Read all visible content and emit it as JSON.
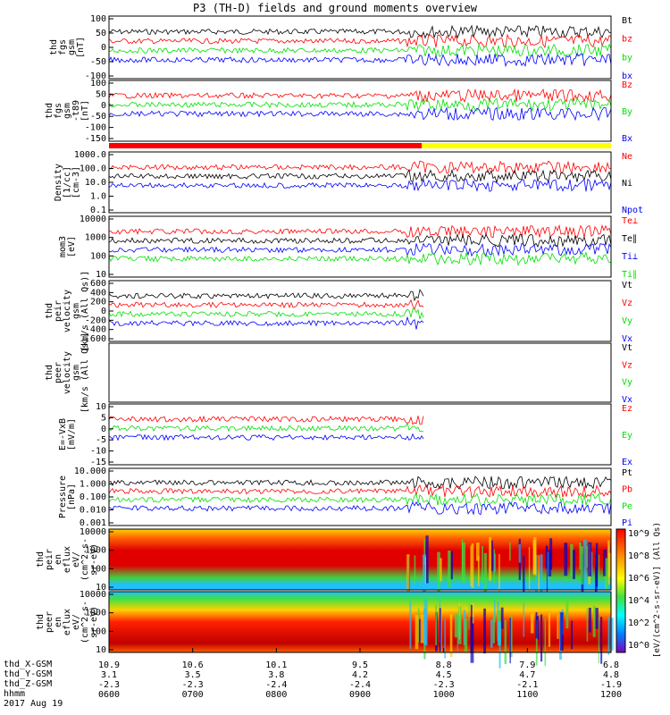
{
  "title": "P3 (TH-D) fields and ground moments overview",
  "footer": {
    "rows": [
      "thd_X-GSM",
      "thd_Y-GSM",
      "thd_Z-GSM",
      "hhmm"
    ],
    "date": "2017 Aug 19",
    "ticks": [
      {
        "x": "10.9",
        "y": "3.1",
        "z": "-2.3",
        "t": "0600"
      },
      {
        "x": "10.6",
        "y": "3.5",
        "z": "-2.3",
        "t": "0700"
      },
      {
        "x": "10.1",
        "y": "3.8",
        "z": "-2.4",
        "t": "0800"
      },
      {
        "x": "9.5",
        "y": "4.2",
        "z": "-2.4",
        "t": "0900"
      },
      {
        "x": "8.8",
        "y": "4.5",
        "z": "-2.3",
        "t": "1000"
      },
      {
        "x": "7.9",
        "y": "4.7",
        "z": "-2.1",
        "t": "1100"
      },
      {
        "x": "6.8",
        "y": "4.8",
        "z": "-1.9",
        "t": "1200"
      }
    ]
  },
  "colors": {
    "black": "#000000",
    "red": "#ff0000",
    "green": "#00e000",
    "blue": "#0000ff"
  },
  "chart_data": {
    "type": "line",
    "xlabel": "hhmm",
    "xlim": [
      "0600",
      "1200"
    ],
    "panels": [
      {
        "ylabel": [
          "thd",
          "fgs",
          "gsm",
          "[nT]"
        ],
        "yticks": [
          "100",
          "50",
          "0",
          "-50",
          "-100"
        ],
        "ylim": [
          -100,
          100
        ],
        "legend": [
          {
            "name": "Bt",
            "color": "#000000"
          },
          {
            "name": "bz",
            "color": "#ff0000"
          },
          {
            "name": "by",
            "color": "#00e000"
          },
          {
            "name": "bx",
            "color": "#0000ff"
          }
        ]
      },
      {
        "ylabel": [
          "thd",
          "fgs",
          "gsm",
          "-t89",
          "[nT]"
        ],
        "yticks": [
          "100",
          "50",
          "0",
          "-50",
          "-100",
          "-150"
        ],
        "ylim": [
          -180,
          100
        ],
        "legend": [
          {
            "name": "Bz",
            "color": "#ff0000"
          },
          {
            "name": "By",
            "color": "#00e000"
          },
          {
            "name": "Bx",
            "color": "#0000ff"
          }
        ]
      },
      {
        "ylabel": [
          "Density",
          "[1/cc]",
          "[cm-3]"
        ],
        "yticks": [
          "1000.0",
          "100.0",
          "10.0",
          "1.0",
          "0.1"
        ],
        "ylim": [
          0.1,
          1000
        ],
        "log": true,
        "legend": [
          {
            "name": "Ne",
            "color": "#ff0000"
          },
          {
            "name": "Ni",
            "color": "#000000"
          },
          {
            "name": "Npot",
            "color": "#0000ff"
          }
        ]
      },
      {
        "ylabel": [
          "mom3",
          "[eV]"
        ],
        "yticks": [
          "10000",
          "1000",
          "100",
          "10"
        ],
        "ylim": [
          10,
          10000
        ],
        "log": true,
        "legend": [
          {
            "name": "Te⊥",
            "color": "#ff0000"
          },
          {
            "name": "Te∥",
            "color": "#000000"
          },
          {
            "name": "Ti⊥",
            "color": "#0000ff"
          },
          {
            "name": "Ti∥",
            "color": "#00e000"
          }
        ]
      },
      {
        "ylabel": [
          "thd",
          "peir",
          "velocity",
          "gsm",
          "[km/s (All Qs)]"
        ],
        "yticks": [
          "600",
          "400",
          "200",
          "0",
          "-200",
          "-400",
          "-600"
        ],
        "ylim": [
          -600,
          600
        ],
        "legend": [
          {
            "name": "Vt",
            "color": "#000000"
          },
          {
            "name": "Vz",
            "color": "#ff0000"
          },
          {
            "name": "Vy",
            "color": "#00e000"
          },
          {
            "name": "Vx",
            "color": "#0000ff"
          }
        ]
      },
      {
        "ylabel": [
          "thd",
          "peer",
          "velocity",
          "gsm",
          "[km/s (All Qs)]"
        ],
        "yticks": [],
        "legend": [
          {
            "name": "Vt",
            "color": "#000000"
          },
          {
            "name": "Vz",
            "color": "#ff0000"
          },
          {
            "name": "Vy",
            "color": "#00e000"
          },
          {
            "name": "Vx",
            "color": "#0000ff"
          }
        ]
      },
      {
        "ylabel": [
          "E=-VxB",
          "[mV/m]"
        ],
        "yticks": [
          "10",
          "5",
          "0",
          "-5",
          "-10",
          "-15"
        ],
        "ylim": [
          -15,
          12
        ],
        "legend": [
          {
            "name": "Ez",
            "color": "#ff0000"
          },
          {
            "name": "Ey",
            "color": "#00e000"
          },
          {
            "name": "Ex",
            "color": "#0000ff"
          }
        ]
      },
      {
        "ylabel": [
          "Pressure",
          "[nPa]"
        ],
        "yticks": [
          "10.000",
          "1.000",
          "0.100",
          "0.010",
          "0.001"
        ],
        "ylim": [
          0.001,
          10
        ],
        "log": true,
        "legend": [
          {
            "name": "Pt",
            "color": "#000000"
          },
          {
            "name": "Pb",
            "color": "#ff0000"
          },
          {
            "name": "Pe",
            "color": "#00e000"
          },
          {
            "name": "Pi",
            "color": "#0000ff"
          }
        ]
      },
      {
        "ylabel": [
          "thd",
          "peir",
          "en",
          "eflux",
          "eV/",
          "(cm^2-s-",
          "sr-eV)"
        ],
        "yticks": [
          "10000",
          "1000",
          "100",
          "10"
        ],
        "ylim": [
          10,
          20000
        ],
        "log": true,
        "type": "spectrogram"
      },
      {
        "ylabel": [
          "thd",
          "peer",
          "en",
          "eflux",
          "eV/",
          "(cm^2-s-",
          "sr-eV)"
        ],
        "yticks": [
          "10000",
          "1000",
          "100",
          "10"
        ],
        "ylim": [
          10,
          20000
        ],
        "log": true,
        "type": "spectrogram"
      }
    ],
    "colorbar": {
      "label": "[eV/(cm^2-s-sr-eV)] (All Qs)",
      "ticks": [
        "10^9",
        "10^8",
        "10^6",
        "10^4",
        "10^2",
        "10^0"
      ]
    }
  }
}
